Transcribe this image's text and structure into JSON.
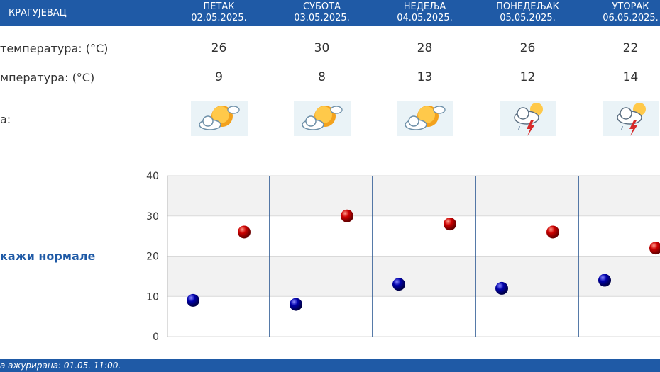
{
  "header": {
    "city": "КРАГУЈЕВАЦ",
    "days": [
      {
        "name": "ПЕТАК",
        "date": "02.05.2025."
      },
      {
        "name": "СУБОТА",
        "date": "03.05.2025."
      },
      {
        "name": "НЕДЕЉА",
        "date": "04.05.2025."
      },
      {
        "name": "ПОНЕДЕЉАК",
        "date": "05.05.2025."
      },
      {
        "name": "УТОРАК",
        "date": "06.05.2025."
      }
    ]
  },
  "rows": {
    "max_label": "температура: (°C)",
    "min_label": "мпература: (°C)",
    "icon_label": "а:",
    "max": [
      "26",
      "30",
      "28",
      "26",
      "22"
    ],
    "min": [
      "9",
      "8",
      "13",
      "12",
      "14"
    ],
    "icons": [
      "partly-sunny-icon",
      "partly-sunny-icon",
      "partly-sunny-icon",
      "thunderstorm-sun-icon",
      "thunderstorm-sun-icon"
    ]
  },
  "normale_label": "кажи нормале",
  "footer": {
    "updated": "а ажурирана:  01.05. 11:00."
  },
  "colors": {
    "header_bg": "#1f5aa6",
    "max_dot": "#cc0000",
    "min_dot": "#0000aa"
  },
  "chart_data": {
    "type": "scatter",
    "categories": [
      "02.05.2025.",
      "03.05.2025.",
      "04.05.2025.",
      "05.05.2025.",
      "06.05.2025."
    ],
    "series": [
      {
        "values": [
          9,
          8,
          13,
          12,
          14
        ]
      },
      {
        "values": [
          26,
          30,
          28,
          26,
          22
        ]
      }
    ],
    "yticks": [
      "0",
      "10",
      "20",
      "30",
      "40"
    ],
    "ylim": [
      0,
      40
    ],
    "grid": true
  }
}
